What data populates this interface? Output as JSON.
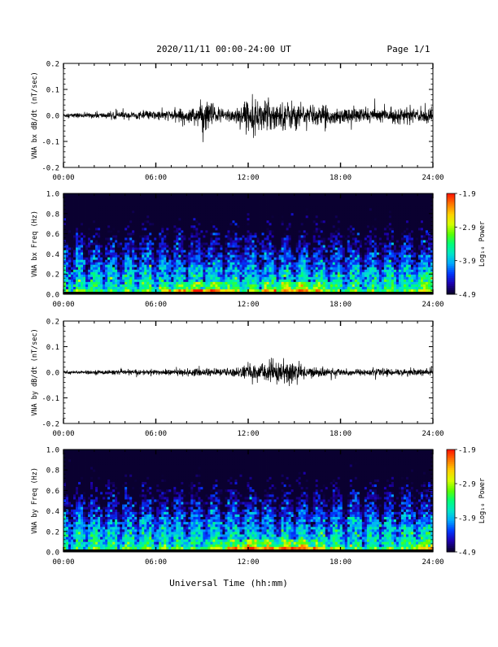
{
  "page": {
    "title": "2020/11/11  00:00-24:00 UT",
    "page_label": "Page 1/1",
    "xlabel": "Universal Time (hh:mm)"
  },
  "colors": {
    "waveform": "#000000",
    "colormap": [
      "#0a0030",
      "#1e00b0",
      "#0038ff",
      "#00a8ff",
      "#00e6c8",
      "#00ff78",
      "#5cff00",
      "#d6ff00",
      "#ffd000",
      "#ff7a00",
      "#ff1a00"
    ]
  },
  "chart_data": [
    {
      "type": "line",
      "ylabel": "VNA bx dB/dt (nT/sec)",
      "xticks": [
        "00:00",
        "06:00",
        "12:00",
        "18:00",
        "24:00"
      ],
      "xlim": [
        0,
        24
      ],
      "ylim": [
        -0.2,
        0.2
      ],
      "yticks": [
        "0.2",
        "0.1",
        "0.0",
        "-0.1",
        "-0.2"
      ],
      "series": [
        {
          "envelope": [
            [
              0,
              0.008
            ],
            [
              1,
              0.008
            ],
            [
              2,
              0.009
            ],
            [
              3,
              0.01
            ],
            [
              4,
              0.012
            ],
            [
              5,
              0.013
            ],
            [
              6,
              0.016
            ],
            [
              7,
              0.018
            ],
            [
              8,
              0.022
            ],
            [
              8.5,
              0.03
            ],
            [
              9,
              0.045
            ],
            [
              9.5,
              0.055
            ],
            [
              10,
              0.03
            ],
            [
              10.5,
              0.02
            ],
            [
              11,
              0.03
            ],
            [
              11.5,
              0.035
            ],
            [
              12,
              0.05
            ],
            [
              12.5,
              0.055
            ],
            [
              13,
              0.05
            ],
            [
              13.5,
              0.055
            ],
            [
              14,
              0.05
            ],
            [
              14.5,
              0.045
            ],
            [
              15,
              0.05
            ],
            [
              15.5,
              0.04
            ],
            [
              16,
              0.035
            ],
            [
              17,
              0.03
            ],
            [
              18,
              0.028
            ],
            [
              19,
              0.026
            ],
            [
              20,
              0.025
            ],
            [
              21,
              0.024
            ],
            [
              22,
              0.025
            ],
            [
              23,
              0.026
            ],
            [
              24,
              0.025
            ]
          ]
        }
      ]
    },
    {
      "type": "heatmap",
      "ylabel": "VNA bx Freq (Hz)",
      "colorbar_label": "Log₁₀ Power",
      "colorbar_ticks": [
        "-1.9",
        "-2.9",
        "-3.9",
        "-4.9"
      ],
      "clim": [
        -4.9,
        -1.9
      ],
      "xticks": [
        "00:00",
        "06:00",
        "12:00",
        "18:00",
        "24:00"
      ],
      "xlim": [
        0,
        24
      ],
      "ylim": [
        0.0,
        1.0
      ],
      "yticks": [
        "1.0",
        "0.8",
        "0.6",
        "0.4",
        "0.2",
        "0.0"
      ],
      "stripes_hours": [
        0.5,
        1.5,
        2.6,
        3.7,
        4.8,
        6.0,
        7.0,
        8.0,
        9.2,
        10.4,
        11.6,
        12.8,
        13.9,
        15.0,
        16.1,
        17.2,
        18.3,
        19.5,
        20.6,
        21.7,
        22.9
      ],
      "low_freq_peak_hours": [
        9.0,
        15.0
      ],
      "peak_freq_hz": 0.05
    },
    {
      "type": "line",
      "ylabel": "VNA by dB/dt (nT/sec)",
      "xticks": [
        "00:00",
        "06:00",
        "12:00",
        "18:00",
        "24:00"
      ],
      "xlim": [
        0,
        24
      ],
      "ylim": [
        -0.2,
        0.2
      ],
      "yticks": [
        "0.2",
        "0.1",
        "0.0",
        "-0.1",
        "-0.2"
      ],
      "series": [
        {
          "envelope": [
            [
              0,
              0.006
            ],
            [
              1,
              0.006
            ],
            [
              2,
              0.007
            ],
            [
              3,
              0.008
            ],
            [
              4,
              0.008
            ],
            [
              5,
              0.009
            ],
            [
              6,
              0.01
            ],
            [
              7,
              0.01
            ],
            [
              8,
              0.012
            ],
            [
              9,
              0.014
            ],
            [
              10,
              0.013
            ],
            [
              11,
              0.015
            ],
            [
              11.5,
              0.02
            ],
            [
              12,
              0.025
            ],
            [
              12.5,
              0.03
            ],
            [
              13,
              0.035
            ],
            [
              13.5,
              0.04
            ],
            [
              14,
              0.045
            ],
            [
              14.5,
              0.05
            ],
            [
              15,
              0.035
            ],
            [
              15.5,
              0.025
            ],
            [
              16,
              0.018
            ],
            [
              17,
              0.015
            ],
            [
              18,
              0.012
            ],
            [
              19,
              0.012
            ],
            [
              20,
              0.012
            ],
            [
              21,
              0.012
            ],
            [
              22,
              0.012
            ],
            [
              23,
              0.013
            ],
            [
              24,
              0.012
            ]
          ]
        }
      ]
    },
    {
      "type": "heatmap",
      "ylabel": "VNA by Freq (Hz)",
      "colorbar_label": "Log₁₀ Power",
      "colorbar_ticks": [
        "-1.9",
        "-2.9",
        "-3.9",
        "-4.9"
      ],
      "clim": [
        -4.9,
        -1.9
      ],
      "xticks": [
        "00:00",
        "06:00",
        "12:00",
        "18:00",
        "24:00"
      ],
      "xlim": [
        0,
        24
      ],
      "ylim": [
        0.0,
        1.0
      ],
      "yticks": [
        "1.0",
        "0.8",
        "0.6",
        "0.4",
        "0.2",
        "0.0"
      ],
      "stripes_hours": [
        0.5,
        1.5,
        2.6,
        3.7,
        4.8,
        6.0,
        7.0,
        8.0,
        9.2,
        10.4,
        11.6,
        12.8,
        13.9,
        15.0,
        16.1,
        17.2,
        18.3,
        19.5,
        20.6,
        21.7,
        22.9
      ],
      "low_freq_peak_hours": [
        12.0,
        15.0
      ],
      "peak_freq_hz": 0.05
    }
  ]
}
